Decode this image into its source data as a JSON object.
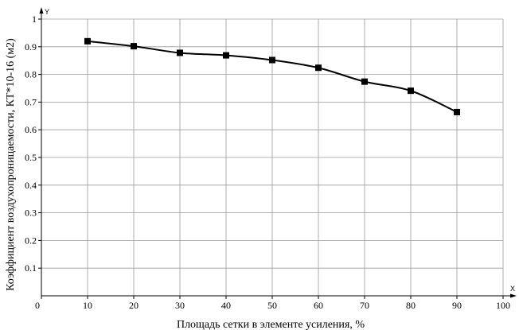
{
  "chart_data": {
    "type": "line",
    "xlabel": "Площадь сетки в элементе усиления, %",
    "ylabel": "Коэффициент воздухопроницаемости, КТ*10-16 (м2)",
    "x_axis_letter": "X",
    "y_axis_letter": "Y",
    "xlim": [
      0,
      100
    ],
    "ylim": [
      0,
      1
    ],
    "x_ticks": [
      "0",
      "10",
      "20",
      "30",
      "40",
      "50",
      "60",
      "70",
      "80",
      "90",
      "100"
    ],
    "y_ticks": [
      "0.1",
      "0.2",
      "0.3",
      "0.4",
      "0.5",
      "0.6",
      "0.7",
      "0.8",
      "0.9",
      "1"
    ],
    "grid": true,
    "series": [
      {
        "x": [
          10,
          20,
          30,
          40,
          50,
          60,
          70,
          80,
          90
        ],
        "y": [
          0.92,
          0.902,
          0.878,
          0.869,
          0.852,
          0.824,
          0.774,
          0.741,
          0.664
        ],
        "color": "#000000",
        "marker": "square"
      }
    ]
  }
}
